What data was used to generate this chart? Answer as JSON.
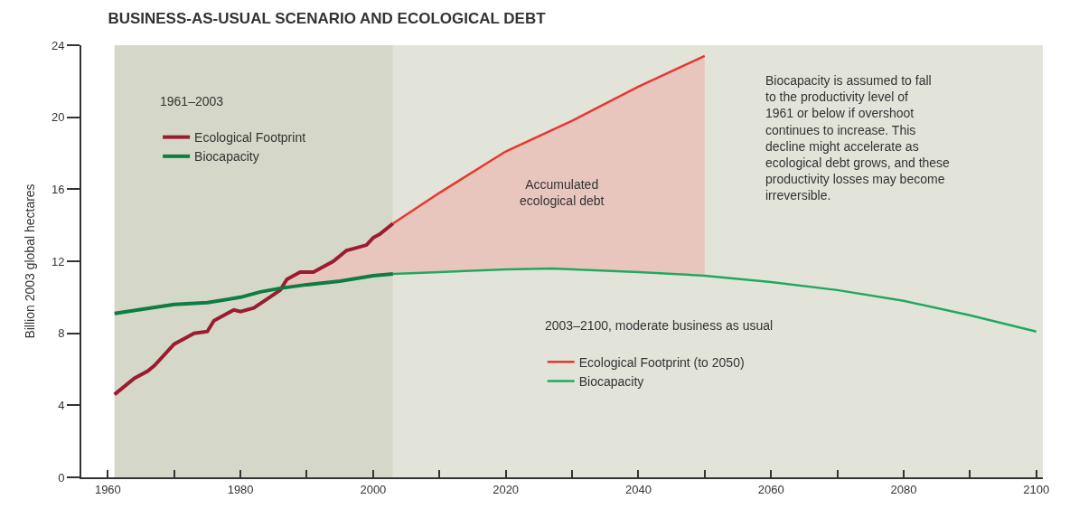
{
  "chart_data": {
    "type": "line",
    "title": "BUSINESS-AS-USUAL SCENARIO AND ECOLOGICAL DEBT",
    "ylabel": "Billion 2003 global hectares",
    "xlim": [
      1956,
      2101
    ],
    "ylim": [
      0,
      24
    ],
    "xticks": [
      1960,
      {
        "value": 1970,
        "label": null
      },
      1980,
      {
        "value": 1990,
        "label": null
      },
      2000,
      {
        "value": 2010,
        "label": null
      },
      2020,
      {
        "value": 2030,
        "label": null
      },
      2040,
      {
        "value": 2050,
        "label": null
      },
      2060,
      {
        "value": 2070,
        "label": null
      },
      2080,
      {
        "value": 2090,
        "label": null
      },
      2100
    ],
    "yticks": [
      0,
      4,
      8,
      12,
      16,
      20,
      24
    ],
    "grid": false,
    "legend": "top left",
    "bands": [
      {
        "axis": "x",
        "from": 1961,
        "to": 2003,
        "color": "#d5d8c8"
      },
      {
        "axis": "x",
        "from": 2003,
        "to": 2101,
        "color": "#e2e4da"
      }
    ],
    "series": [
      {
        "name": "Ecological Footprint",
        "color": "#9b1c31",
        "x": [
          1961,
          1964,
          1966,
          1967,
          1968,
          1970,
          1972,
          1973,
          1975,
          1976,
          1979,
          1980,
          1982,
          1984,
          1986,
          1987,
          1989,
          1991,
          1992,
          1994,
          1996,
          1997,
          1999,
          2000,
          2001,
          2003
        ],
        "values": [
          4.6,
          5.5,
          5.9,
          6.2,
          6.6,
          7.4,
          7.8,
          8.0,
          8.1,
          8.7,
          9.3,
          9.2,
          9.4,
          9.9,
          10.4,
          11.0,
          11.4,
          11.4,
          11.6,
          12.0,
          12.6,
          12.7,
          12.9,
          13.3,
          13.5,
          14.1
        ],
        "lower": [
          null,
          null,
          null,
          null,
          null,
          null,
          null,
          null,
          null,
          null,
          null,
          null,
          null,
          null,
          null,
          10.55,
          10.65,
          10.75,
          10.8,
          10.85,
          10.9,
          10.95,
          11.1,
          11.2,
          11.25,
          11.3
        ],
        "upper": [
          null,
          null,
          null,
          null,
          null,
          null,
          null,
          null,
          null,
          null,
          null,
          null,
          null,
          null,
          null,
          11.0,
          11.4,
          11.4,
          11.6,
          12.0,
          12.6,
          12.7,
          12.9,
          13.3,
          13.5,
          14.1
        ]
      },
      {
        "name": "Biocapacity",
        "color": "#0e7c43",
        "x": [
          1961,
          1970,
          1975,
          1980,
          1983,
          1986,
          1990,
          1995,
          2000,
          2003
        ],
        "values": [
          9.1,
          9.6,
          9.7,
          10.0,
          10.3,
          10.5,
          10.7,
          10.9,
          11.2,
          11.3
        ]
      },
      {
        "name": "Ecological Footprint (to 2050)",
        "color": "#e8372f",
        "x": [
          2003,
          2010,
          2020,
          2030,
          2040,
          2050
        ],
        "values": [
          14.1,
          15.8,
          18.1,
          19.8,
          21.7,
          23.4
        ],
        "lower": [
          11.3,
          11.4,
          11.55,
          11.6,
          11.4,
          11.2
        ],
        "upper": [
          14.1,
          15.8,
          18.1,
          19.8,
          21.7,
          23.4
        ]
      },
      {
        "name": "Biocapacity",
        "color": "#22a85e",
        "x": [
          2003,
          2010,
          2020,
          2027,
          2040,
          2050,
          2060,
          2070,
          2080,
          2090,
          2100
        ],
        "values": [
          11.3,
          11.4,
          11.55,
          11.6,
          11.4,
          11.2,
          10.85,
          10.4,
          9.8,
          9.0,
          8.1
        ]
      }
    ],
    "annotations": [
      "1961–2003",
      "2003–2100, moderate business as usual",
      "Biocapacity is assumed to fall to the productivity level of 1961 or below if overshoot continues to increase. This decline might accelerate as ecological debt grows, and these productivity losses may become irreversible.",
      "Accumulated ecological debt"
    ]
  }
}
